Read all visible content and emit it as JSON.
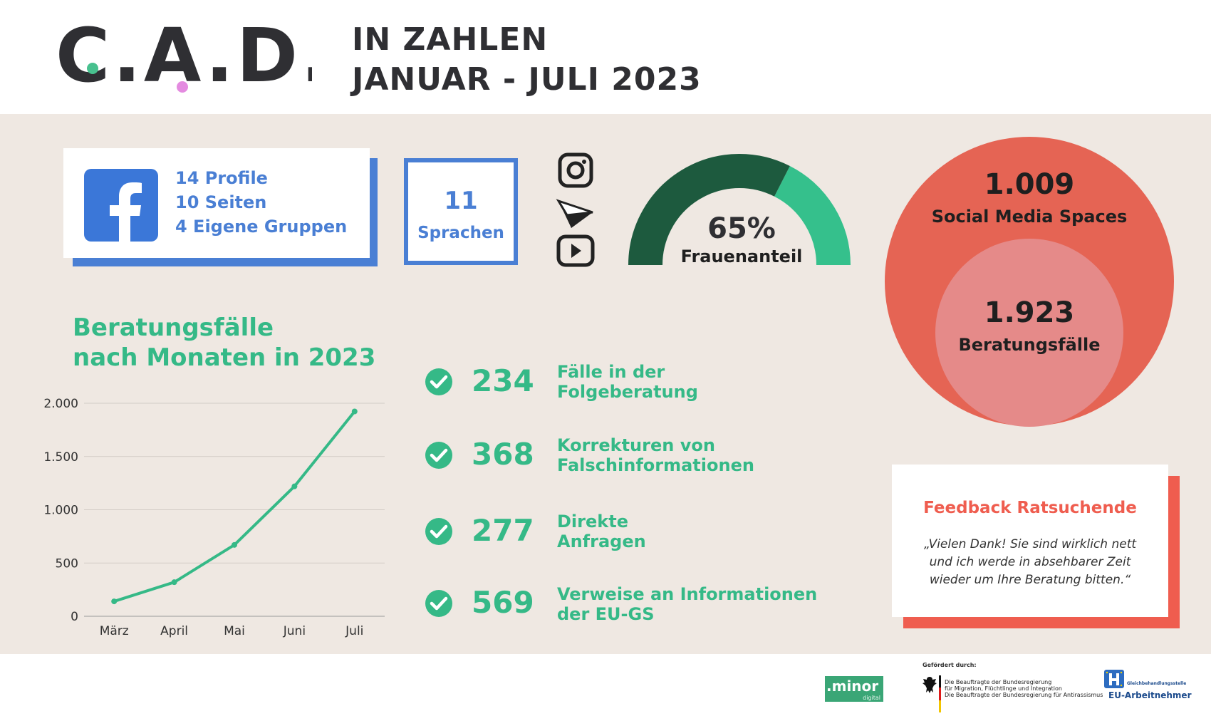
{
  "header": {
    "logo_text": "C.A.D.S",
    "title_line1": "IN ZAHLEN",
    "title_line2": "JANUAR -  JULI 2023"
  },
  "facebook": {
    "icon": "facebook-icon",
    "line1": "14 Profile",
    "line2": "10 Seiten",
    "line3": " 4 Eigene Gruppen"
  },
  "sprachen": {
    "value": "11",
    "label": "Sprachen"
  },
  "social_icons": [
    "instagram-icon",
    "telegram-icon",
    "youtube-icon"
  ],
  "gauge": {
    "value_text": "65%",
    "label": "Frauenanteil",
    "fraction": 0.65,
    "color_main": "#1d5a3e",
    "color_rest": "#35c08c"
  },
  "circles": {
    "outer_value": "1.009",
    "outer_label": "Social Media Spaces",
    "inner_value": "1.923",
    "inner_label": "Beratungsfälle",
    "outer_color": "#e56454",
    "inner_color": "#e58a89"
  },
  "chart_title_line1": "Beratungsfälle",
  "chart_title_line2": "nach Monaten in 2023",
  "chart_data": {
    "type": "line",
    "title": "Beratungsfälle nach Monaten in 2023",
    "categories": [
      "März",
      "April",
      "Mai",
      "Juni",
      "Juli"
    ],
    "values": [
      140,
      320,
      670,
      1220,
      1923
    ],
    "ylim": [
      0,
      2000
    ],
    "yticks": [
      0,
      500,
      1000,
      1500,
      2000
    ],
    "ytick_labels": [
      "0",
      "500",
      "1.000",
      "1.500",
      "2.000"
    ],
    "grid": true,
    "color": "#35b987"
  },
  "stats": [
    {
      "value": "234",
      "text1": "Fälle in der",
      "text2": "Folgeberatung"
    },
    {
      "value": "368",
      "text1": "Korrekturen von",
      "text2": "Falschinformationen"
    },
    {
      "value": "277",
      "text1": "Direkte",
      "text2": "Anfragen"
    },
    {
      "value": "569",
      "text1": "Verweise an Informationen",
      "text2": "der EU-GS"
    }
  ],
  "feedback": {
    "title": "Feedback Ratsuchende",
    "quote": "„Vielen Dank! Sie sind wirklich nett und ich werde in absehbarer Zeit wieder um Ihre Beratung bitten.“"
  },
  "footer": {
    "minor_main": ".minor",
    "minor_sub": "digital",
    "gefoerdert": "Gefördert durch:",
    "gov_line1": "Die Beauftragte der Bundesregierung",
    "gov_line2": "für Migration, Flüchtlinge und Integration",
    "gov_line3": "Die Beauftragte der Bundesregierung für Antirassismus",
    "eu_small": "Gleichbehandlungsstelle",
    "eu_main": "EU-Arbeitnehmer"
  }
}
